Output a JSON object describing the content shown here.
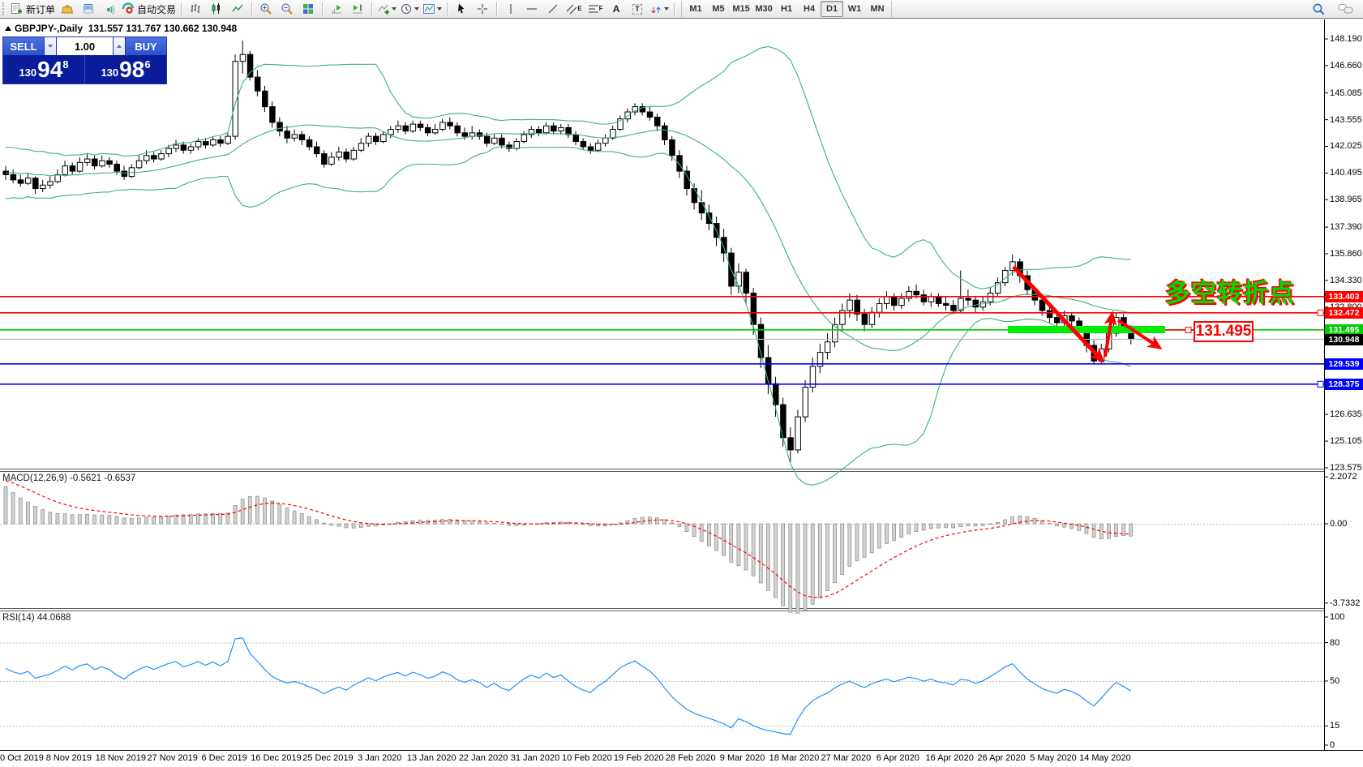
{
  "toolbar": {
    "new_order_label": "新订单",
    "autotrade_label": "自动交易",
    "timeframes": [
      "M1",
      "M5",
      "M15",
      "M30",
      "H1",
      "H4",
      "D1",
      "W1",
      "MN"
    ],
    "active_timeframe": "D1",
    "tool_text_icons": {
      "text_tool": "A",
      "label_tag": "T",
      "channel_tag": "E",
      "fibo_tag": "F"
    }
  },
  "chart": {
    "symbol_title": "GBPJPY-,Daily",
    "ohlc_line": "131.557 131.767 130.662 130.948",
    "trade_panel": {
      "sell_label": "SELL",
      "buy_label": "BUY",
      "volume": "1.00",
      "sell_price_prefix": "130",
      "sell_price_big": "94",
      "sell_price_sup": "8",
      "buy_price_prefix": "130",
      "buy_price_big": "98",
      "buy_price_sup": "6"
    },
    "macd_label": "MACD(12,26,9) -0.5621 -0.6537",
    "rsi_label": "RSI(14) 44.0688",
    "annotation": {
      "turning_point_text": "多空转折点",
      "callout_price": "131.495"
    },
    "colors": {
      "up_body": "#ffffff",
      "down_body": "#000000",
      "band": "#3cb371",
      "macd_bar_fill": "#d2d2d2",
      "macd_bar_edge": "#8e8e8e",
      "macd_signal": "#ff0000",
      "rsi_line": "#1e90ff",
      "accent_green": "#00ee00",
      "accent_red": "#ff0000",
      "current_price_line": "#b4b4b4",
      "blue_line": "#0000e8",
      "red_line": "#f00000",
      "green_line": "#00cc00"
    }
  },
  "axes": {
    "price_ticks": [
      148.19,
      146.66,
      145.085,
      143.555,
      142.025,
      140.495,
      138.965,
      137.39,
      135.86,
      134.33,
      132.8,
      126.635,
      125.105,
      123.575
    ],
    "price_labels": [
      {
        "text": "133.403",
        "price": 133.403,
        "bg": "#ff0000",
        "fg": "#ffffff",
        "handle": false
      },
      {
        "text": "132.472",
        "price": 132.472,
        "bg": "#ff0000",
        "fg": "#ffffff",
        "handle": true
      },
      {
        "text": "131.495",
        "price": 131.495,
        "bg": "#00cc00",
        "fg": "#ffffff",
        "handle": false
      },
      {
        "text": "130.948",
        "price": 130.948,
        "bg": "#000000",
        "fg": "#ffffff",
        "handle": false
      },
      {
        "text": "129.539",
        "price": 129.539,
        "bg": "#0000ff",
        "fg": "#ffffff",
        "handle": false
      },
      {
        "text": "128.375",
        "price": 128.375,
        "bg": "#0000ff",
        "fg": "#ffffff",
        "handle": true
      }
    ],
    "macd_ticks": [
      {
        "label": "2.2072",
        "value": 2.2072
      },
      {
        "label": "0.00",
        "value": 0
      },
      {
        "label": "-3.7332",
        "value": -3.7332
      }
    ],
    "rsi_ticks": [
      {
        "label": "100",
        "value": 100
      },
      {
        "label": "80",
        "value": 80
      },
      {
        "label": "50",
        "value": 50
      },
      {
        "label": "15",
        "value": 15
      },
      {
        "label": "0",
        "value": 0
      }
    ],
    "rsi_dashed_levels": [
      80,
      50,
      15
    ],
    "dates": [
      "0 Oct 2019",
      "8 Nov 2019",
      "18 Nov 2019",
      "27 Nov 2019",
      "6 Dec 2019",
      "16 Dec 2019",
      "25 Dec 2019",
      "3 Jan 2020",
      "13 Jan 2020",
      "22 Jan 2020",
      "31 Jan 2020",
      "10 Feb 2020",
      "19 Feb 2020",
      "28 Feb 2020",
      "9 Mar 2020",
      "18 Mar 2020",
      "27 Mar 2020",
      "6 Apr 2020",
      "16 Apr 2020",
      "26 Apr 2020",
      "5 May 2020",
      "14 May 2020"
    ]
  },
  "chart_data": {
    "type": "candlestick",
    "symbol": "GBPJPY-",
    "timeframe": "Daily",
    "price_axis_range": [
      123.575,
      148.19
    ],
    "indicators": [
      {
        "name": "Bollinger Bands",
        "period": 20,
        "deviation": 2
      },
      {
        "name": "MACD",
        "fast": 12,
        "slow": 26,
        "signal": 9,
        "shown_values": "-0.5621 -0.6537",
        "scale": [
          -3.7332,
          2.2072
        ]
      },
      {
        "name": "RSI",
        "period": 14,
        "shown_value": 44.0688,
        "scale": [
          0,
          100
        ]
      }
    ],
    "drawings": [
      {
        "type": "hline",
        "price": 133.403,
        "color": "#ff0000"
      },
      {
        "type": "hline",
        "price": 132.472,
        "color": "#ff0000"
      },
      {
        "type": "hline",
        "price": 131.495,
        "color": "#00cc00"
      },
      {
        "type": "current_price_line",
        "price": 130.948,
        "color": "#b4b4b4"
      },
      {
        "type": "hline",
        "price": 129.539,
        "color": "#0000ff"
      },
      {
        "type": "hline",
        "price": 128.375,
        "color": "#0000ff"
      },
      {
        "type": "thick_zone_bar",
        "price": 131.495,
        "color": "#00ee00"
      },
      {
        "type": "trend_arrow",
        "dir": "down",
        "from_price": 134.1,
        "to_price": 129.9
      },
      {
        "type": "trend_arrow",
        "dir": "up",
        "from_price": 129.6,
        "to_price": 132.4
      },
      {
        "type": "trend_arrow",
        "dir": "down",
        "from_price": 132.2,
        "to_price": 130.7
      },
      {
        "type": "text",
        "text": "多空转折点",
        "color": "#00dc00"
      },
      {
        "type": "callout",
        "text": "131.495",
        "color": "#ff0000"
      }
    ],
    "ohlc": [
      [
        140.6,
        140.9,
        140.1,
        140.4
      ],
      [
        140.4,
        140.7,
        139.9,
        140.1
      ],
      [
        140.1,
        140.4,
        139.7,
        139.9
      ],
      [
        139.9,
        140.5,
        139.8,
        140.2
      ],
      [
        140.2,
        140.3,
        139.3,
        139.6
      ],
      [
        139.6,
        140.1,
        139.4,
        139.8
      ],
      [
        139.8,
        140.3,
        139.6,
        140.0
      ],
      [
        140.0,
        140.7,
        139.9,
        140.4
      ],
      [
        140.4,
        141.2,
        140.3,
        140.9
      ],
      [
        140.9,
        141.1,
        140.4,
        140.6
      ],
      [
        140.6,
        141.4,
        140.5,
        141.1
      ],
      [
        141.1,
        141.6,
        140.9,
        141.3
      ],
      [
        141.3,
        141.5,
        140.7,
        140.9
      ],
      [
        140.9,
        141.5,
        140.8,
        141.2
      ],
      [
        141.2,
        141.4,
        140.8,
        141.0
      ],
      [
        141.0,
        141.2,
        140.4,
        140.6
      ],
      [
        140.6,
        140.9,
        140.1,
        140.3
      ],
      [
        140.3,
        141.0,
        140.2,
        140.8
      ],
      [
        140.8,
        141.5,
        140.7,
        141.2
      ],
      [
        141.2,
        141.8,
        141.0,
        141.5
      ],
      [
        141.5,
        141.7,
        141.1,
        141.3
      ],
      [
        141.3,
        141.8,
        141.2,
        141.6
      ],
      [
        141.6,
        142.1,
        141.4,
        141.9
      ],
      [
        141.9,
        142.4,
        141.7,
        142.1
      ],
      [
        142.1,
        142.3,
        141.6,
        141.8
      ],
      [
        141.8,
        142.2,
        141.6,
        142.0
      ],
      [
        142.0,
        142.5,
        141.8,
        142.3
      ],
      [
        142.3,
        142.5,
        141.9,
        142.1
      ],
      [
        142.1,
        142.6,
        142.0,
        142.4
      ],
      [
        142.4,
        142.6,
        142.0,
        142.2
      ],
      [
        142.2,
        142.8,
        142.1,
        142.6
      ],
      [
        142.6,
        147.3,
        142.4,
        146.9
      ],
      [
        146.9,
        148.1,
        146.2,
        147.3
      ],
      [
        147.3,
        147.5,
        145.8,
        146.0
      ],
      [
        146.0,
        146.4,
        144.9,
        145.2
      ],
      [
        145.2,
        145.5,
        144.0,
        144.3
      ],
      [
        144.3,
        144.6,
        143.1,
        143.4
      ],
      [
        143.4,
        143.7,
        142.6,
        142.9
      ],
      [
        142.9,
        143.2,
        142.2,
        142.5
      ],
      [
        142.5,
        143.0,
        142.3,
        142.7
      ],
      [
        142.7,
        142.9,
        142.1,
        142.4
      ],
      [
        142.4,
        142.6,
        141.8,
        142.0
      ],
      [
        142.0,
        142.3,
        141.4,
        141.6
      ],
      [
        141.6,
        141.8,
        140.8,
        141.0
      ],
      [
        141.0,
        141.7,
        140.9,
        141.4
      ],
      [
        141.4,
        142.0,
        141.2,
        141.7
      ],
      [
        141.7,
        141.9,
        141.1,
        141.3
      ],
      [
        141.3,
        142.0,
        141.2,
        141.8
      ],
      [
        141.8,
        142.5,
        141.7,
        142.2
      ],
      [
        142.2,
        142.8,
        142.0,
        142.6
      ],
      [
        142.6,
        142.8,
        142.1,
        142.3
      ],
      [
        142.3,
        142.9,
        142.2,
        142.7
      ],
      [
        142.7,
        143.2,
        142.5,
        143.0
      ],
      [
        143.0,
        143.5,
        142.8,
        143.2
      ],
      [
        143.2,
        143.4,
        142.7,
        142.9
      ],
      [
        142.9,
        143.5,
        142.8,
        143.3
      ],
      [
        143.3,
        143.5,
        142.9,
        143.1
      ],
      [
        143.1,
        143.3,
        142.6,
        142.8
      ],
      [
        142.8,
        143.3,
        142.7,
        143.0
      ],
      [
        143.0,
        143.6,
        142.9,
        143.4
      ],
      [
        143.4,
        143.7,
        143.0,
        143.2
      ],
      [
        143.2,
        143.4,
        142.6,
        142.8
      ],
      [
        142.8,
        143.1,
        142.4,
        142.6
      ],
      [
        142.6,
        143.2,
        142.4,
        142.8
      ],
      [
        142.8,
        143.0,
        142.4,
        142.6
      ],
      [
        142.6,
        142.8,
        142.0,
        142.2
      ],
      [
        142.2,
        142.7,
        142.1,
        142.5
      ],
      [
        142.5,
        142.7,
        141.9,
        142.1
      ],
      [
        142.1,
        142.3,
        141.7,
        141.9
      ],
      [
        141.9,
        142.5,
        141.8,
        142.3
      ],
      [
        142.3,
        142.9,
        142.2,
        142.7
      ],
      [
        142.7,
        143.2,
        142.5,
        143.0
      ],
      [
        143.0,
        143.2,
        142.6,
        142.8
      ],
      [
        142.8,
        143.4,
        142.7,
        143.2
      ],
      [
        143.2,
        143.4,
        142.7,
        142.9
      ],
      [
        142.9,
        143.3,
        142.7,
        143.1
      ],
      [
        143.1,
        143.3,
        142.5,
        142.7
      ],
      [
        142.7,
        142.9,
        142.1,
        142.3
      ],
      [
        142.3,
        142.5,
        141.8,
        142.0
      ],
      [
        142.0,
        142.2,
        141.6,
        141.8
      ],
      [
        141.8,
        142.4,
        141.7,
        142.2
      ],
      [
        142.2,
        142.7,
        142.0,
        142.5
      ],
      [
        142.5,
        143.2,
        142.4,
        143.0
      ],
      [
        143.0,
        143.8,
        142.9,
        143.6
      ],
      [
        143.6,
        144.2,
        143.4,
        144.0
      ],
      [
        144.0,
        144.5,
        143.8,
        144.3
      ],
      [
        144.3,
        144.5,
        143.8,
        144.0
      ],
      [
        144.0,
        144.3,
        143.5,
        143.7
      ],
      [
        143.7,
        143.9,
        142.9,
        143.2
      ],
      [
        143.2,
        143.4,
        142.1,
        142.4
      ],
      [
        142.4,
        142.6,
        141.2,
        141.5
      ],
      [
        141.5,
        141.8,
        140.2,
        140.6
      ],
      [
        140.6,
        140.9,
        139.2,
        139.6
      ],
      [
        139.6,
        139.9,
        138.4,
        138.8
      ],
      [
        138.8,
        139.5,
        137.8,
        138.2
      ],
      [
        138.2,
        138.7,
        137.2,
        137.6
      ],
      [
        137.6,
        138.0,
        136.3,
        136.8
      ],
      [
        136.8,
        137.3,
        135.4,
        135.9
      ],
      [
        135.9,
        136.2,
        133.5,
        134.0
      ],
      [
        134.0,
        135.3,
        133.6,
        134.8
      ],
      [
        134.8,
        135.0,
        133.0,
        133.6
      ],
      [
        133.6,
        133.9,
        131.2,
        131.8
      ],
      [
        131.8,
        132.2,
        129.3,
        129.9
      ],
      [
        129.9,
        130.6,
        127.8,
        128.4
      ],
      [
        128.4,
        128.8,
        126.5,
        127.2
      ],
      [
        127.2,
        127.6,
        124.8,
        125.3
      ],
      [
        125.3,
        125.9,
        123.9,
        124.6
      ],
      [
        124.6,
        126.9,
        124.4,
        126.5
      ],
      [
        126.5,
        128.6,
        126.2,
        128.2
      ],
      [
        128.2,
        129.9,
        127.9,
        129.4
      ],
      [
        129.4,
        130.7,
        129.0,
        130.2
      ],
      [
        130.2,
        131.3,
        129.8,
        130.8
      ],
      [
        130.8,
        132.2,
        130.5,
        131.8
      ],
      [
        131.8,
        133.0,
        131.4,
        132.6
      ],
      [
        132.6,
        133.6,
        132.2,
        133.2
      ],
      [
        133.2,
        133.5,
        132.0,
        132.4
      ],
      [
        132.4,
        132.7,
        131.4,
        131.8
      ],
      [
        131.8,
        132.8,
        131.6,
        132.5
      ],
      [
        132.5,
        133.3,
        132.2,
        133.0
      ],
      [
        133.0,
        133.7,
        132.7,
        133.4
      ],
      [
        133.4,
        133.6,
        132.6,
        132.9
      ],
      [
        132.9,
        133.6,
        132.7,
        133.3
      ],
      [
        133.3,
        134.0,
        133.1,
        133.7
      ],
      [
        133.7,
        134.1,
        133.3,
        133.5
      ],
      [
        133.5,
        133.8,
        132.9,
        133.1
      ],
      [
        133.1,
        133.6,
        132.8,
        133.4
      ],
      [
        133.4,
        133.6,
        132.8,
        133.0
      ],
      [
        133.0,
        133.4,
        132.6,
        132.9
      ],
      [
        132.9,
        133.2,
        132.4,
        132.6
      ],
      [
        132.6,
        134.9,
        132.5,
        133.3
      ],
      [
        133.3,
        133.8,
        132.9,
        133.2
      ],
      [
        133.2,
        133.4,
        132.5,
        132.8
      ],
      [
        132.8,
        133.4,
        132.6,
        133.1
      ],
      [
        133.1,
        133.9,
        132.9,
        133.6
      ],
      [
        133.6,
        134.5,
        133.4,
        134.2
      ],
      [
        134.2,
        135.1,
        134.0,
        134.9
      ],
      [
        134.9,
        135.8,
        134.6,
        135.4
      ],
      [
        135.4,
        135.6,
        134.2,
        134.6
      ],
      [
        134.6,
        134.9,
        133.5,
        133.8
      ],
      [
        133.8,
        134.0,
        132.9,
        133.2
      ],
      [
        133.2,
        133.5,
        132.3,
        132.6
      ],
      [
        132.6,
        132.9,
        131.9,
        132.2
      ],
      [
        132.2,
        132.5,
        131.6,
        131.9
      ],
      [
        131.9,
        132.6,
        131.7,
        132.3
      ],
      [
        132.3,
        132.5,
        131.6,
        132.0
      ],
      [
        132.0,
        132.2,
        131.2,
        131.5
      ],
      [
        131.5,
        131.7,
        130.2,
        130.6
      ],
      [
        130.6,
        130.9,
        129.5,
        129.7
      ],
      [
        129.7,
        130.7,
        129.5,
        130.4
      ],
      [
        130.4,
        131.6,
        130.2,
        131.3
      ],
      [
        131.3,
        132.5,
        131.1,
        132.2
      ],
      [
        132.2,
        132.4,
        131.4,
        131.6
      ],
      [
        131.56,
        131.77,
        130.66,
        130.95
      ]
    ]
  }
}
